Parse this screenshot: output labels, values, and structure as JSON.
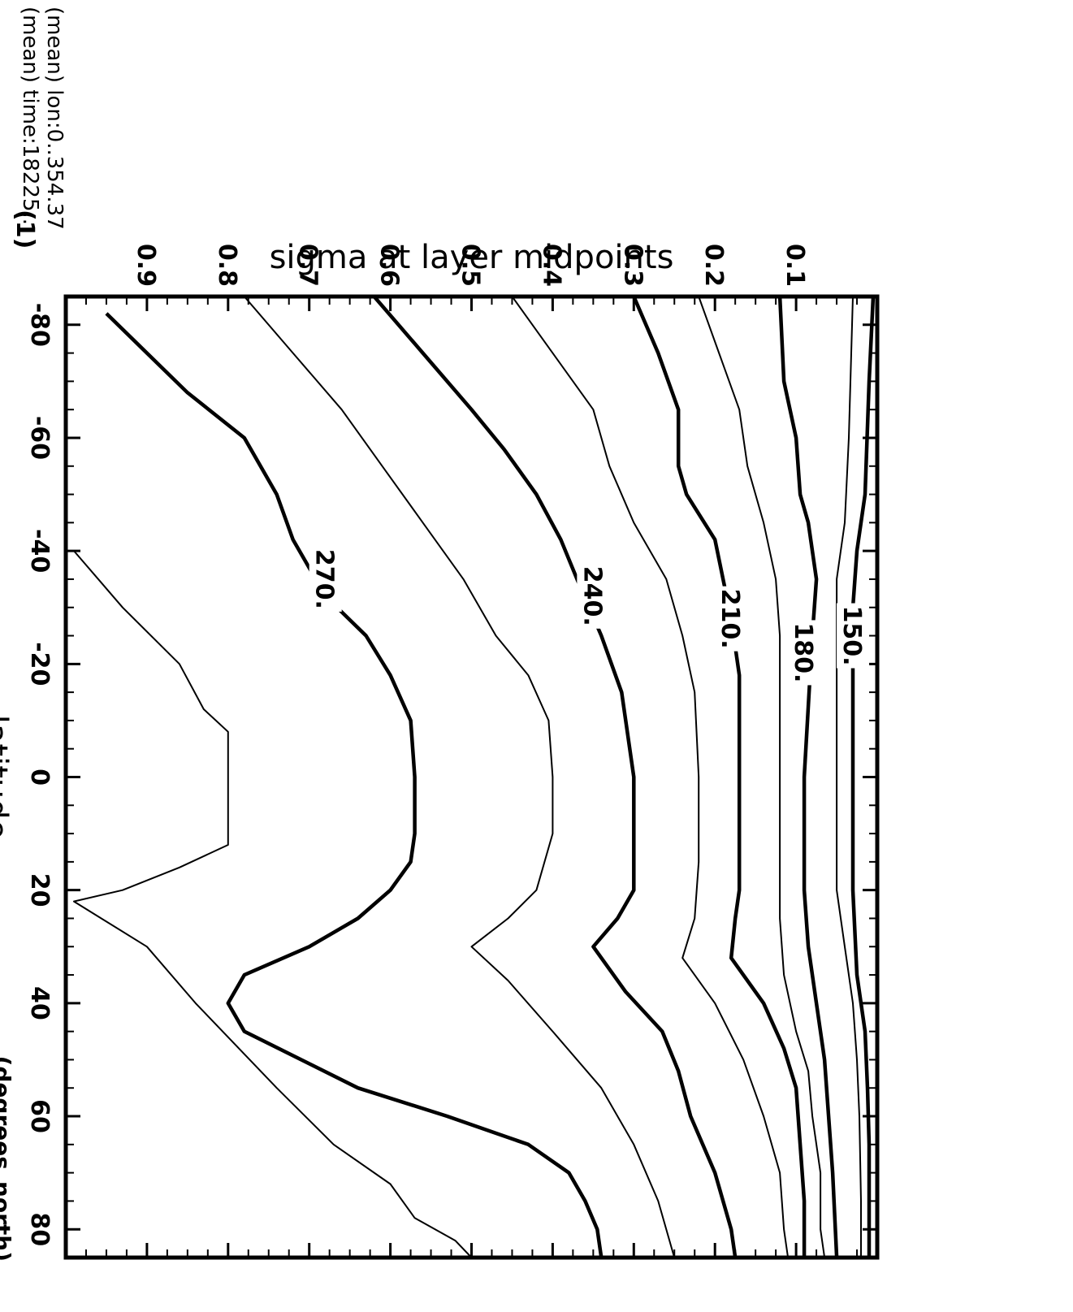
{
  "chart_data": {
    "type": "contour",
    "title": "",
    "panel_label": "(1)",
    "xlabel": "latitude",
    "x_units": "(degrees_north)",
    "ylabel": "sigma at layer midpoints",
    "xlim": [
      -85,
      85
    ],
    "ylim": [
      1.0,
      0.0
    ],
    "x_ticks": [
      -80,
      -60,
      -40,
      -20,
      0,
      20,
      40,
      60,
      80
    ],
    "x_tick_labels": [
      "-80",
      "-60",
      "-40",
      "-20",
      "0",
      "20",
      "40",
      "60",
      "80"
    ],
    "y_ticks": [
      0.1,
      0.2,
      0.3,
      0.4,
      0.5,
      0.6,
      0.7,
      0.8,
      0.9
    ],
    "y_tick_labels": [
      "0.1",
      "0.2",
      "0.3",
      "0.4",
      "0.5",
      "0.6",
      "0.7",
      "0.8",
      "0.9"
    ],
    "info_lines": [
      "(mean) lon:0..354.37",
      "(mean) time:18225.."
    ],
    "contour_labels": [
      "150.",
      "180.",
      "210.",
      "240.",
      "270."
    ],
    "contours": [
      {
        "level": 150,
        "labeled": true,
        "label_at": [
          -25,
          0.03
        ],
        "points": [
          [
            -85,
            0.005
          ],
          [
            -70,
            0.01
          ],
          [
            -50,
            0.015
          ],
          [
            -40,
            0.025
          ],
          [
            -30,
            0.03
          ],
          [
            -15,
            0.03
          ],
          [
            0,
            0.03
          ],
          [
            20,
            0.03
          ],
          [
            35,
            0.025
          ],
          [
            45,
            0.015
          ],
          [
            55,
            0.012
          ],
          [
            65,
            0.01
          ],
          [
            75,
            0.01
          ],
          [
            85,
            0.01
          ]
        ]
      },
      {
        "level": 165,
        "labeled": false,
        "points": [
          [
            -85,
            0.03
          ],
          [
            -60,
            0.035
          ],
          [
            -45,
            0.04
          ],
          [
            -35,
            0.05
          ],
          [
            0,
            0.05
          ],
          [
            20,
            0.05
          ],
          [
            30,
            0.04
          ],
          [
            40,
            0.03
          ],
          [
            50,
            0.025
          ],
          [
            60,
            0.022
          ],
          [
            75,
            0.02
          ],
          [
            85,
            0.02
          ]
        ]
      },
      {
        "level": 180,
        "labeled": true,
        "label_at": [
          -22,
          0.09
        ],
        "points": [
          [
            -85,
            0.12
          ],
          [
            -70,
            0.115
          ],
          [
            -60,
            0.1
          ],
          [
            -50,
            0.095
          ],
          [
            -45,
            0.085
          ],
          [
            -35,
            0.075
          ],
          [
            -25,
            0.08
          ],
          [
            0,
            0.09
          ],
          [
            20,
            0.09
          ],
          [
            30,
            0.085
          ],
          [
            40,
            0.075
          ],
          [
            50,
            0.065
          ],
          [
            60,
            0.06
          ],
          [
            70,
            0.055
          ],
          [
            85,
            0.05
          ]
        ]
      },
      {
        "level": 195,
        "labeled": false,
        "points": [
          [
            -85,
            0.22
          ],
          [
            -75,
            0.195
          ],
          [
            -65,
            0.17
          ],
          [
            -55,
            0.16
          ],
          [
            -45,
            0.14
          ],
          [
            -35,
            0.125
          ],
          [
            -25,
            0.12
          ],
          [
            0,
            0.12
          ],
          [
            25,
            0.12
          ],
          [
            35,
            0.115
          ],
          [
            45,
            0.1
          ],
          [
            52,
            0.085
          ],
          [
            60,
            0.08
          ],
          [
            70,
            0.07
          ],
          [
            80,
            0.07
          ],
          [
            85,
            0.065
          ]
        ]
      },
      {
        "level": 210,
        "labeled": true,
        "label_at": [
          -28,
          0.18
        ],
        "points": [
          [
            -85,
            0.3
          ],
          [
            -75,
            0.27
          ],
          [
            -65,
            0.245
          ],
          [
            -55,
            0.245
          ],
          [
            -50,
            0.235
          ],
          [
            -42,
            0.2
          ],
          [
            -35,
            0.19
          ],
          [
            -28,
            0.18
          ],
          [
            -18,
            0.17
          ],
          [
            0,
            0.17
          ],
          [
            20,
            0.17
          ],
          [
            25,
            0.175
          ],
          [
            32,
            0.18
          ],
          [
            40,
            0.14
          ],
          [
            48,
            0.115
          ],
          [
            55,
            0.1
          ],
          [
            65,
            0.095
          ],
          [
            75,
            0.09
          ],
          [
            85,
            0.09
          ]
        ]
      },
      {
        "level": 225,
        "labeled": false,
        "points": [
          [
            -85,
            0.45
          ],
          [
            -75,
            0.4
          ],
          [
            -65,
            0.35
          ],
          [
            -55,
            0.33
          ],
          [
            -45,
            0.3
          ],
          [
            -35,
            0.26
          ],
          [
            -25,
            0.24
          ],
          [
            -15,
            0.225
          ],
          [
            0,
            0.22
          ],
          [
            15,
            0.22
          ],
          [
            25,
            0.225
          ],
          [
            32,
            0.24
          ],
          [
            40,
            0.2
          ],
          [
            50,
            0.165
          ],
          [
            60,
            0.14
          ],
          [
            70,
            0.12
          ],
          [
            80,
            0.115
          ],
          [
            85,
            0.11
          ]
        ]
      },
      {
        "level": 240,
        "labeled": true,
        "label_at": [
          -32,
          0.35
        ],
        "points": [
          [
            -85,
            0.62
          ],
          [
            -75,
            0.56
          ],
          [
            -65,
            0.5
          ],
          [
            -58,
            0.46
          ],
          [
            -50,
            0.42
          ],
          [
            -42,
            0.39
          ],
          [
            -35,
            0.37
          ],
          [
            -25,
            0.34
          ],
          [
            -15,
            0.315
          ],
          [
            0,
            0.3
          ],
          [
            15,
            0.3
          ],
          [
            20,
            0.3
          ],
          [
            25,
            0.32
          ],
          [
            30,
            0.35
          ],
          [
            38,
            0.31
          ],
          [
            45,
            0.265
          ],
          [
            52,
            0.245
          ],
          [
            60,
            0.23
          ],
          [
            70,
            0.2
          ],
          [
            80,
            0.18
          ],
          [
            85,
            0.175
          ]
        ]
      },
      {
        "level": 255,
        "labeled": false,
        "points": [
          [
            -85,
            0.78
          ],
          [
            -75,
            0.72
          ],
          [
            -65,
            0.66
          ],
          [
            -55,
            0.61
          ],
          [
            -45,
            0.56
          ],
          [
            -35,
            0.51
          ],
          [
            -25,
            0.47
          ],
          [
            -18,
            0.43
          ],
          [
            -10,
            0.405
          ],
          [
            0,
            0.4
          ],
          [
            10,
            0.4
          ],
          [
            20,
            0.42
          ],
          [
            25,
            0.455
          ],
          [
            30,
            0.5
          ],
          [
            36,
            0.455
          ],
          [
            45,
            0.4
          ],
          [
            55,
            0.34
          ],
          [
            65,
            0.3
          ],
          [
            75,
            0.27
          ],
          [
            85,
            0.25
          ]
        ]
      },
      {
        "level": 270,
        "labeled": true,
        "label_at": [
          -35,
          0.68
        ],
        "points": [
          [
            -82,
            0.95
          ],
          [
            -75,
            0.9
          ],
          [
            -68,
            0.85
          ],
          [
            -60,
            0.78
          ],
          [
            -50,
            0.74
          ],
          [
            -42,
            0.72
          ],
          [
            -32,
            0.68
          ],
          [
            -25,
            0.63
          ],
          [
            -18,
            0.6
          ],
          [
            -10,
            0.575
          ],
          [
            0,
            0.57
          ],
          [
            10,
            0.57
          ],
          [
            15,
            0.575
          ],
          [
            20,
            0.6
          ],
          [
            25,
            0.64
          ],
          [
            30,
            0.7
          ],
          [
            35,
            0.78
          ],
          [
            40,
            0.8
          ],
          [
            45,
            0.78
          ],
          [
            55,
            0.64
          ],
          [
            60,
            0.53
          ],
          [
            65,
            0.43
          ],
          [
            70,
            0.38
          ],
          [
            75,
            0.36
          ],
          [
            80,
            0.345
          ],
          [
            85,
            0.34
          ]
        ]
      },
      {
        "level": 285,
        "labeled": false,
        "points": [
          [
            -40,
            0.99
          ],
          [
            -30,
            0.93
          ],
          [
            -20,
            0.86
          ],
          [
            -12,
            0.83
          ],
          [
            -8,
            0.8
          ],
          [
            0,
            0.8
          ],
          [
            8,
            0.8
          ],
          [
            12,
            0.8
          ],
          [
            16,
            0.86
          ],
          [
            20,
            0.93
          ],
          [
            22,
            0.99
          ],
          [
            30,
            0.9
          ],
          [
            40,
            0.84
          ],
          [
            55,
            0.74
          ],
          [
            65,
            0.67
          ],
          [
            72,
            0.6
          ],
          [
            78,
            0.57
          ],
          [
            82,
            0.52
          ],
          [
            85,
            0.5
          ]
        ]
      }
    ]
  }
}
